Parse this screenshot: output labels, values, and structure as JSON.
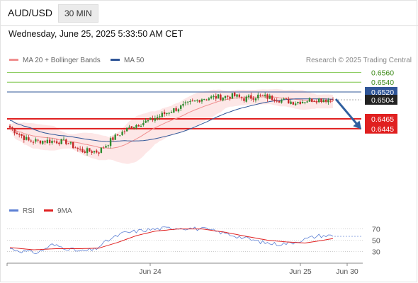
{
  "header": {
    "pair": "AUD/USD",
    "timeframe": "30 MIN"
  },
  "datetime": "Wednesday, June 25, 2025 5:33:50 AM CET",
  "credit": "Research © 2025 Trading Central",
  "colors": {
    "ma20": "#f08f8f",
    "bollinger_fill": "#fde3e3",
    "ma50": "#2f5597",
    "resistance": "#6abe30",
    "support": "#e02020",
    "candle_up": "#2e8b2e",
    "candle_down": "#c62828",
    "rsi": "#5b7fd4",
    "rsi_ma": "#e02020",
    "arrow": "#2f5f9f"
  },
  "chart_data": [
    {
      "type": "candlestick",
      "legend": [
        {
          "label": "MA 20 + Bollinger Bands",
          "color": "#f08f8f"
        },
        {
          "label": "MA 50",
          "color": "#2f5597"
        }
      ],
      "x_tick_labels": [
        "Jun 24",
        "Jun 25",
        "Jun 30"
      ],
      "ylim": [
        0.63,
        0.6575
      ],
      "levels": [
        {
          "label": "0.6560",
          "value": 0.656,
          "kind": "resistance"
        },
        {
          "label": "0.6540",
          "value": 0.654,
          "kind": "resistance"
        },
        {
          "label": "0.6520",
          "value": 0.652,
          "kind": "pivot"
        },
        {
          "label": "0.6465",
          "value": 0.6465,
          "kind": "support"
        },
        {
          "label": "0.6445",
          "value": 0.6445,
          "kind": "support"
        }
      ],
      "last_price": {
        "label": "0.6504",
        "value": 0.6504
      },
      "forecast": {
        "direction": "down",
        "from": 0.6504,
        "to": 0.6445
      },
      "close_waypoints": [
        [
          0,
          0.6447
        ],
        [
          8,
          0.642
        ],
        [
          16,
          0.642
        ],
        [
          24,
          0.6418
        ],
        [
          30,
          0.64
        ],
        [
          38,
          0.6398
        ],
        [
          44,
          0.6425
        ],
        [
          52,
          0.645
        ],
        [
          60,
          0.6462
        ],
        [
          68,
          0.648
        ],
        [
          76,
          0.6495
        ],
        [
          82,
          0.6507
        ],
        [
          90,
          0.651
        ],
        [
          96,
          0.6512
        ],
        [
          100,
          0.6506
        ],
        [
          106,
          0.6512
        ],
        [
          112,
          0.6508
        ],
        [
          116,
          0.6503
        ],
        [
          122,
          0.6499
        ],
        [
          128,
          0.6504
        ],
        [
          134,
          0.6505
        ],
        [
          138,
          0.6504
        ]
      ]
    },
    {
      "type": "line",
      "legend": [
        {
          "label": "RSI",
          "color": "#5b7fd4"
        },
        {
          "label": "9MA",
          "color": "#e02020"
        }
      ],
      "y_ticks": [
        70,
        50,
        30
      ],
      "ylim": [
        18,
        82
      ],
      "rsi_waypoints": [
        [
          0,
          35
        ],
        [
          6,
          30
        ],
        [
          12,
          28
        ],
        [
          18,
          42
        ],
        [
          24,
          36
        ],
        [
          30,
          30
        ],
        [
          36,
          33
        ],
        [
          42,
          50
        ],
        [
          48,
          62
        ],
        [
          54,
          66
        ],
        [
          60,
          69
        ],
        [
          66,
          71
        ],
        [
          72,
          72
        ],
        [
          78,
          71
        ],
        [
          84,
          69
        ],
        [
          90,
          64
        ],
        [
          96,
          58
        ],
        [
          102,
          52
        ],
        [
          108,
          46
        ],
        [
          114,
          43
        ],
        [
          120,
          45
        ],
        [
          126,
          52
        ],
        [
          132,
          58
        ],
        [
          138,
          58
        ]
      ],
      "rsi_ma_waypoints": [
        [
          0,
          37
        ],
        [
          10,
          33
        ],
        [
          20,
          35
        ],
        [
          30,
          35
        ],
        [
          38,
          36
        ],
        [
          46,
          46
        ],
        [
          54,
          58
        ],
        [
          62,
          66
        ],
        [
          72,
          70
        ],
        [
          82,
          70
        ],
        [
          92,
          64
        ],
        [
          102,
          56
        ],
        [
          110,
          50
        ],
        [
          118,
          47
        ],
        [
          126,
          45
        ],
        [
          134,
          50
        ],
        [
          138,
          53
        ]
      ]
    }
  ]
}
